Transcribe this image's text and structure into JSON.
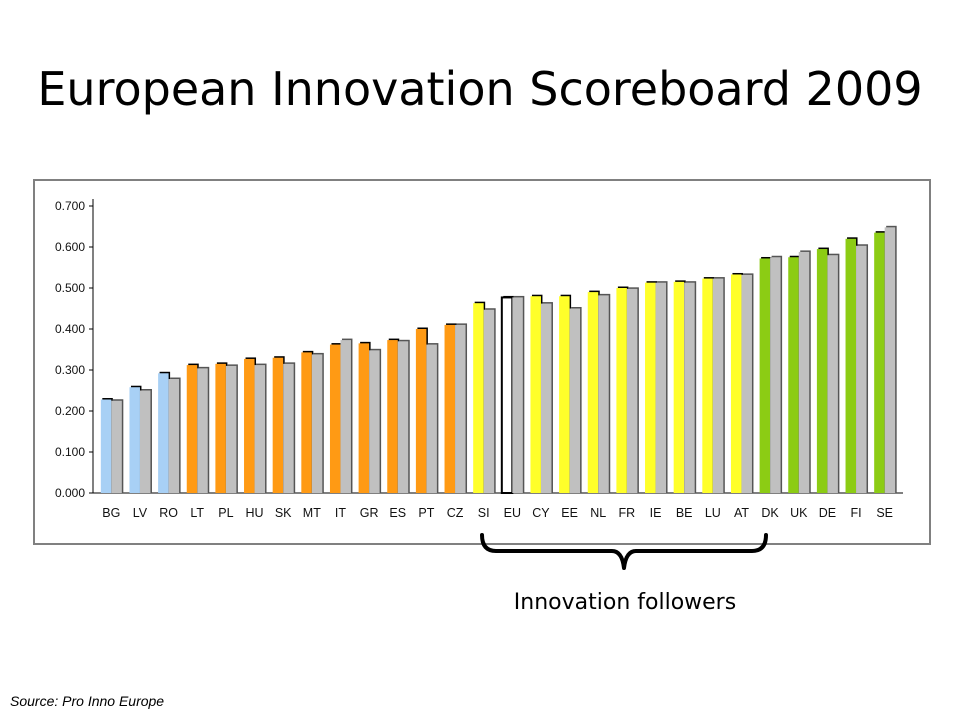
{
  "slide": {
    "title": "European Innovation Scoreboard 2009",
    "annotation": "Innovation followers",
    "source": "Source: Pro Inno Europe"
  },
  "chart_data": {
    "type": "bar",
    "title": "",
    "xlabel": "",
    "ylabel": "",
    "ylim": [
      0,
      0.7
    ],
    "yticks": [
      "0.000",
      "0.100",
      "0.200",
      "0.300",
      "0.400",
      "0.500",
      "0.600",
      "0.700"
    ],
    "grid": false,
    "categories": [
      "BG",
      "LV",
      "RO",
      "LT",
      "PL",
      "HU",
      "SK",
      "MT",
      "IT",
      "GR",
      "ES",
      "PT",
      "CZ",
      "SI",
      "EU",
      "CY",
      "EE",
      "NL",
      "FR",
      "IE",
      "BE",
      "LU",
      "AT",
      "DK",
      "UK",
      "DE",
      "FI",
      "SE"
    ],
    "series": [
      {
        "values": [
          0.228,
          0.258,
          0.292,
          0.312,
          0.315,
          0.327,
          0.33,
          0.343,
          0.362,
          0.365,
          0.373,
          0.4,
          0.41,
          0.463,
          0.477,
          0.48,
          0.48,
          0.49,
          0.5,
          0.513,
          0.515,
          0.523,
          0.533,
          0.572,
          0.575,
          0.595,
          0.62,
          0.635
        ]
      },
      {
        "values": [
          0.225,
          0.25,
          0.278,
          0.304,
          0.31,
          0.312,
          0.315,
          0.338,
          0.373,
          0.348,
          0.37,
          0.362,
          0.41,
          0.447,
          0.477,
          0.462,
          0.45,
          0.482,
          0.498,
          0.513,
          0.513,
          0.523,
          0.532,
          0.575,
          0.588,
          0.58,
          0.603,
          0.648
        ]
      }
    ],
    "group_colors": {
      "modest": "#a8d0f5",
      "catching_up": "#ff9a14",
      "followers": "#ffff2a",
      "eu": "#ffffff",
      "leaders": "#8ccc14",
      "second_series": "#c0c0c0"
    },
    "groups": [
      "modest",
      "modest",
      "modest",
      "catching_up",
      "catching_up",
      "catching_up",
      "catching_up",
      "catching_up",
      "catching_up",
      "catching_up",
      "catching_up",
      "catching_up",
      "catching_up",
      "followers",
      "eu",
      "followers",
      "followers",
      "followers",
      "followers",
      "followers",
      "followers",
      "followers",
      "followers",
      "leaders",
      "leaders",
      "leaders",
      "leaders",
      "leaders"
    ]
  }
}
